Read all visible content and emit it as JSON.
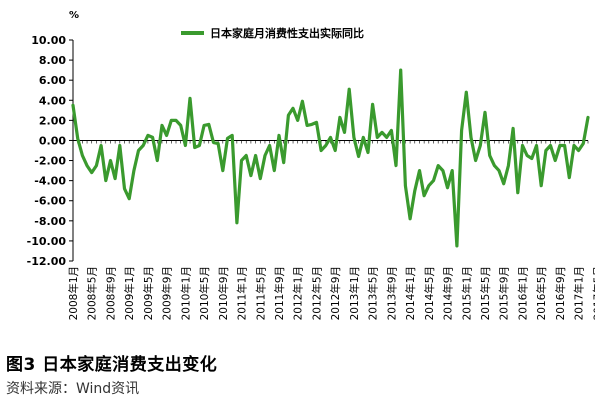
{
  "chart_data": {
    "type": "line",
    "unit": "%",
    "series": [
      {
        "name": "日本家庭月消费性支出实际同比",
        "color": "#3a9a2e",
        "values": [
          3.5,
          0.2,
          -1.5,
          -2.5,
          -3.2,
          -2.5,
          -0.5,
          -4.0,
          -2.0,
          -3.8,
          -0.5,
          -4.8,
          -5.8,
          -3.0,
          -1.0,
          -0.5,
          0.5,
          0.3,
          -2.0,
          1.5,
          0.5,
          2.0,
          2.0,
          1.5,
          -0.5,
          4.2,
          -0.7,
          -0.5,
          1.5,
          1.6,
          -0.2,
          -0.3,
          -3.0,
          0.2,
          0.5,
          -8.2,
          -2.0,
          -1.5,
          -3.5,
          -1.5,
          -3.8,
          -1.5,
          -0.5,
          -3.0,
          0.5,
          -2.2,
          2.5,
          3.2,
          2.0,
          3.9,
          1.5,
          1.6,
          1.8,
          -1.0,
          -0.5,
          0.3,
          -1.0,
          2.3,
          0.8,
          5.1,
          0.3,
          -1.6,
          0.3,
          -1.2,
          3.6,
          0.3,
          0.8,
          0.3,
          1.0,
          -2.5,
          7.0,
          -4.5,
          -7.8,
          -5.0,
          -3.0,
          -5.5,
          -4.5,
          -4.0,
          -2.5,
          -3.0,
          -4.7,
          -3.0,
          -10.5,
          1.0,
          4.8,
          0.3,
          -2.0,
          -0.5,
          2.8,
          -1.5,
          -2.5,
          -3.0,
          -4.3,
          -2.5,
          1.2,
          -5.2,
          -0.5,
          -1.5,
          -1.8,
          -0.5,
          -4.5,
          -1.0,
          -0.5,
          -2.0,
          -0.5,
          -0.5,
          -3.7,
          -0.5,
          -1.0,
          -0.3,
          2.3
        ]
      }
    ],
    "x_tick_labels": [
      "2008年1月",
      "2008年5月",
      "2008年9月",
      "2009年1月",
      "2009年5月",
      "2009年9月",
      "2010年1月",
      "2010年5月",
      "2010年9月",
      "2011年1月",
      "2011年5月",
      "2011年9月",
      "2012年1月",
      "2012年5月",
      "2012年9月",
      "2013年1月",
      "2013年5月",
      "2013年9月",
      "2014年1月",
      "2014年5月",
      "2014年9月",
      "2015年1月",
      "2015年5月",
      "2015年9月",
      "2016年1月",
      "2016年5月",
      "2016年9月",
      "2017年1月",
      "2017年5月"
    ],
    "y_tick_labels": [
      "10.00",
      "8.00",
      "6.00",
      "4.00",
      "2.00",
      "0.00",
      "-2.00",
      "-4.00",
      "-6.00",
      "-8.00",
      "-10.00",
      "-12.00"
    ],
    "ylim": [
      -12,
      10
    ],
    "ytick_step": 2,
    "grid": false,
    "legend_position": "top"
  },
  "caption": "图3 日本家庭消费支出变化",
  "source": "资料来源：Wind资讯"
}
